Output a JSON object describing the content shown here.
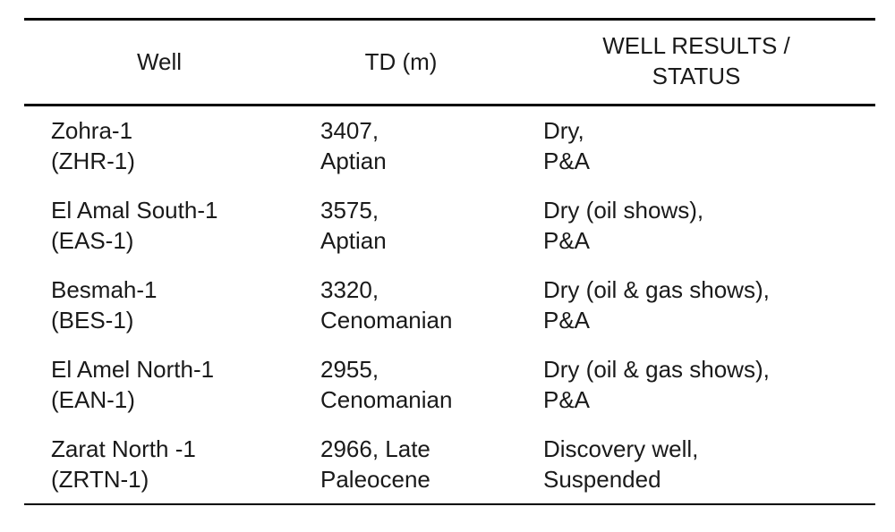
{
  "table": {
    "header": [
      [
        "Well"
      ],
      [
        "TD (m)"
      ],
      [
        "WELL RESULTS /",
        "STATUS"
      ]
    ],
    "rows": [
      [
        [
          "Zohra-1",
          "(ZHR-1)"
        ],
        [
          "3407,",
          "Aptian"
        ],
        [
          "Dry,",
          "P&A"
        ]
      ],
      [
        [
          "El Amal South-1",
          "(EAS-1)"
        ],
        [
          "3575,",
          "Aptian"
        ],
        [
          "Dry (oil shows),",
          "P&A"
        ]
      ],
      [
        [
          "Besmah-1",
          "(BES-1)"
        ],
        [
          "3320,",
          "Cenomanian"
        ],
        [
          "Dry (oil & gas shows),",
          "P&A"
        ]
      ],
      [
        [
          "El Amel North-1",
          "(EAN-1)"
        ],
        [
          "2955,",
          "Cenomanian"
        ],
        [
          "Dry (oil & gas shows),",
          "P&A"
        ]
      ],
      [
        [
          "Zarat North -1",
          "(ZRTN-1)"
        ],
        [
          "2966, Late",
          "Paleocene"
        ],
        [
          "Discovery well,",
          "Suspended"
        ]
      ]
    ]
  }
}
